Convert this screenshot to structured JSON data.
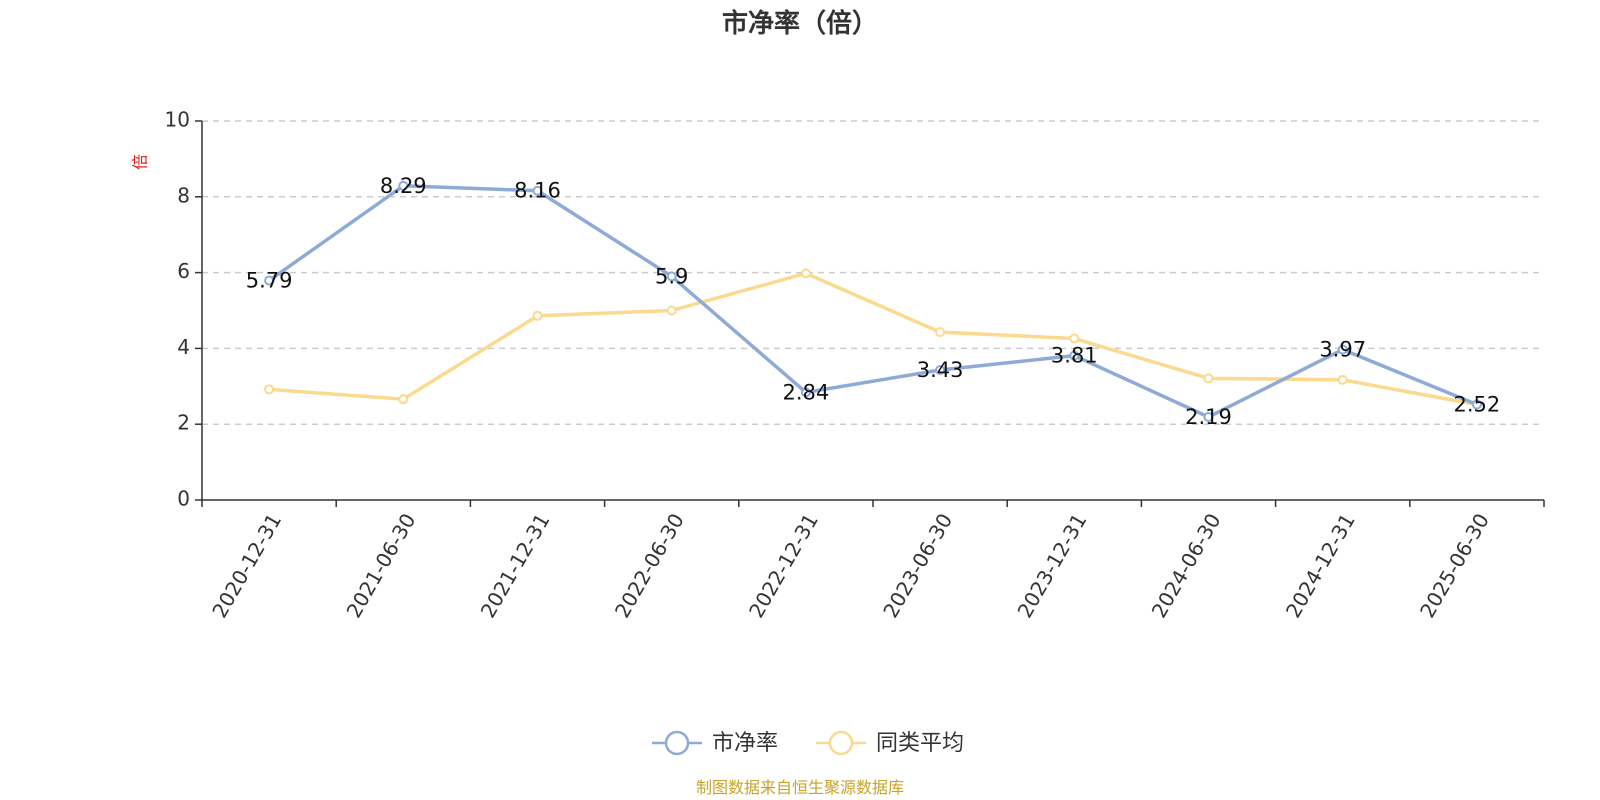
{
  "chart_data": {
    "type": "line",
    "title": "市净率（倍）",
    "ylabel": "倍",
    "ylim": [
      0,
      10
    ],
    "yticks": [
      0,
      2,
      4,
      6,
      8,
      10
    ],
    "grid": true,
    "legend_position": "bottom",
    "categories": [
      "2020-12-31",
      "2021-06-30",
      "2021-12-31",
      "2022-06-30",
      "2022-12-31",
      "2023-06-30",
      "2023-12-31",
      "2024-06-30",
      "2024-12-31",
      "2025-06-30"
    ],
    "series": [
      {
        "name": "市净率",
        "color": "#8eabd8",
        "values": [
          5.79,
          8.29,
          8.16,
          5.9,
          2.84,
          3.43,
          3.81,
          2.19,
          3.97,
          2.52
        ],
        "labels": [
          "5.79",
          "8.29",
          "8.16",
          "5.9",
          "2.84",
          "3.43",
          "3.81",
          "2.19",
          "3.97",
          "2.52"
        ]
      },
      {
        "name": "同类平均",
        "color": "#fbd98e",
        "values": [
          2.92,
          2.66,
          4.86,
          5.0,
          5.98,
          4.43,
          4.26,
          3.21,
          3.17,
          2.52
        ]
      }
    ]
  },
  "source": {
    "text": "制图数据来自恒生聚源数据库",
    "color": "#c9a227"
  }
}
